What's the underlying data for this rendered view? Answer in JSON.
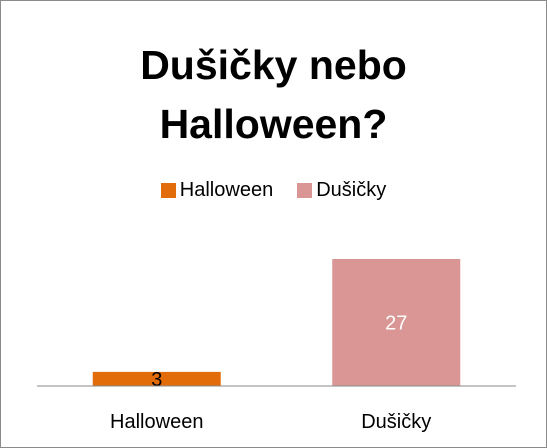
{
  "chart_data": {
    "type": "bar",
    "title_lines": [
      "Dušičky nebo",
      "Halloween?"
    ],
    "categories": [
      "Halloween",
      "Dušičky"
    ],
    "values": [
      3,
      27
    ],
    "colors": [
      "#e36c0a",
      "#d99694"
    ],
    "label_colors": [
      "#000000",
      "#ffffff"
    ],
    "legend": [
      "Halloween",
      "Dušičky"
    ],
    "legend_placement": "top",
    "ylim": [
      0,
      27
    ],
    "grid": false
  }
}
